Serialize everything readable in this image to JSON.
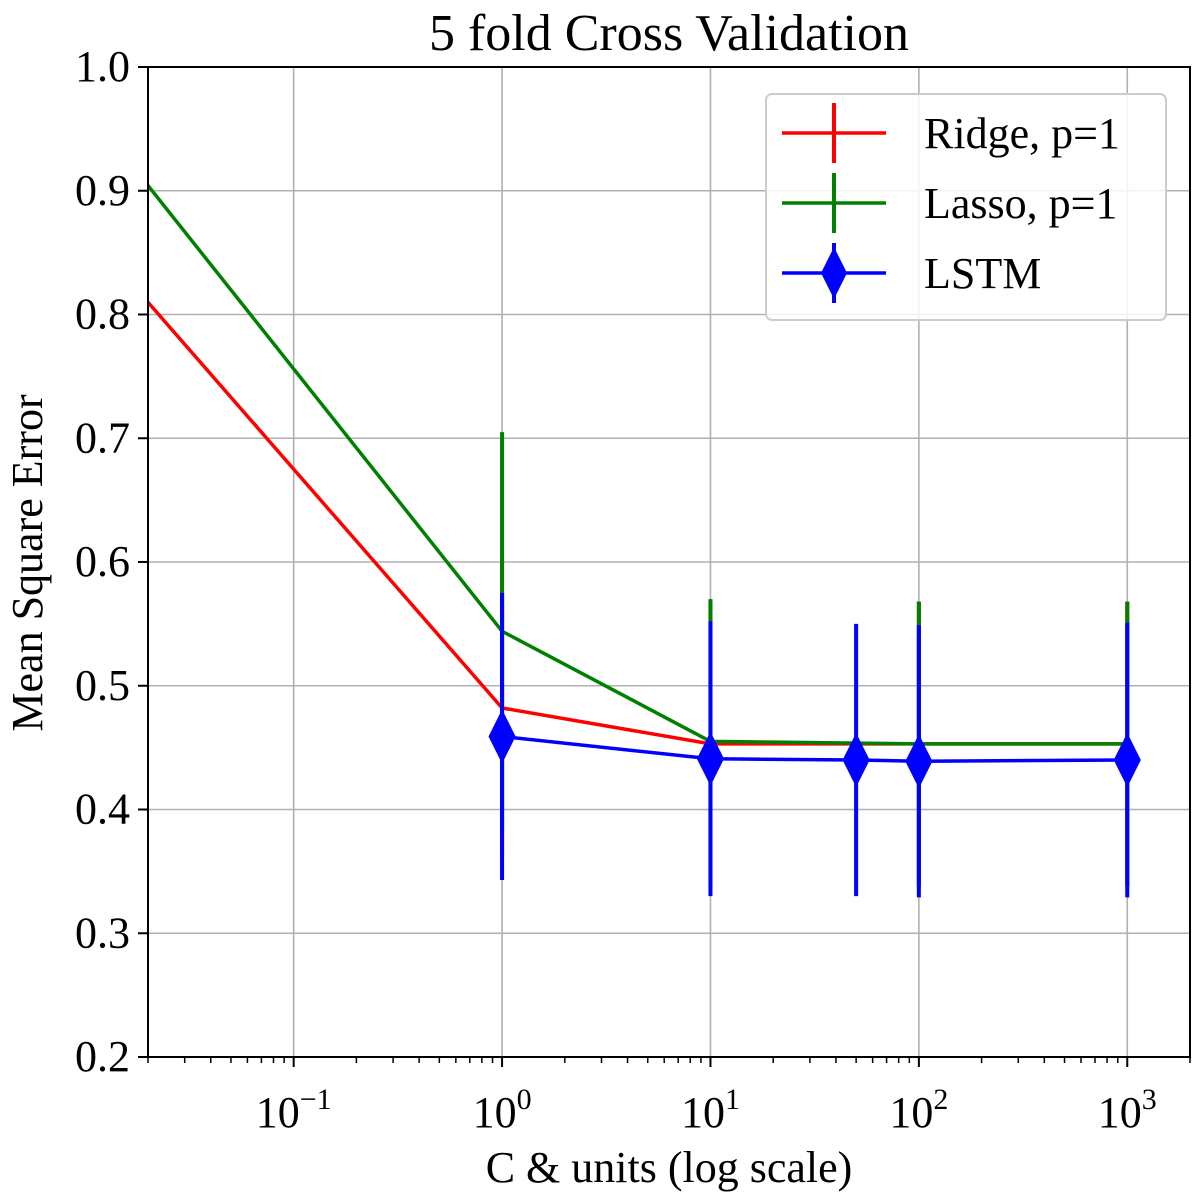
{
  "chart_data": {
    "type": "line",
    "title": "5 fold Cross Validation",
    "xlabel": "C & units (log scale)",
    "ylabel": "Mean Square Error",
    "xscale": "log",
    "xlim": [
      0.02,
      2000
    ],
    "ylim": [
      0.2,
      1.0
    ],
    "grid": true,
    "legend_position": "top-right",
    "yticks": [
      {
        "value": 0.2,
        "label": "0.2"
      },
      {
        "value": 0.3,
        "label": "0.3"
      },
      {
        "value": 0.4,
        "label": "0.4"
      },
      {
        "value": 0.5,
        "label": "0.5"
      },
      {
        "value": 0.6,
        "label": "0.6"
      },
      {
        "value": 0.7,
        "label": "0.7"
      },
      {
        "value": 0.8,
        "label": "0.8"
      },
      {
        "value": 0.9,
        "label": "0.9"
      },
      {
        "value": 1.0,
        "label": "1.0"
      }
    ],
    "xticks": [
      {
        "value": 0.1,
        "base": "10",
        "exp": "−1"
      },
      {
        "value": 1,
        "base": "10",
        "exp": "0"
      },
      {
        "value": 10,
        "base": "10",
        "exp": "1"
      },
      {
        "value": 100,
        "base": "10",
        "exp": "2"
      },
      {
        "value": 1000,
        "base": "10",
        "exp": "3"
      }
    ],
    "series": [
      {
        "name": "Ridge, p=1",
        "color": "#ff0000",
        "marker": "none",
        "x": [
          0.01,
          1,
          10,
          100,
          1000
        ],
        "y": [
          0.868,
          0.482,
          0.453,
          0.453,
          0.453
        ],
        "err": [
          0.1,
          0.12,
          0.115,
          0.115,
          0.115
        ]
      },
      {
        "name": "Lasso, p=1",
        "color": "#008000",
        "marker": "none",
        "x": [
          0.01,
          1,
          10,
          100,
          1000
        ],
        "y": [
          0.968,
          0.544,
          0.455,
          0.453,
          0.453
        ],
        "err": [
          0.1,
          0.161,
          0.115,
          0.115,
          0.115
        ]
      },
      {
        "name": "LSTM",
        "color": "#0000ff",
        "marker": "diamond",
        "x": [
          1,
          10,
          50,
          100,
          1000
        ],
        "y": [
          0.459,
          0.441,
          0.44,
          0.439,
          0.44
        ],
        "err": [
          0.116,
          0.111,
          0.11,
          0.11,
          0.111
        ]
      }
    ]
  }
}
